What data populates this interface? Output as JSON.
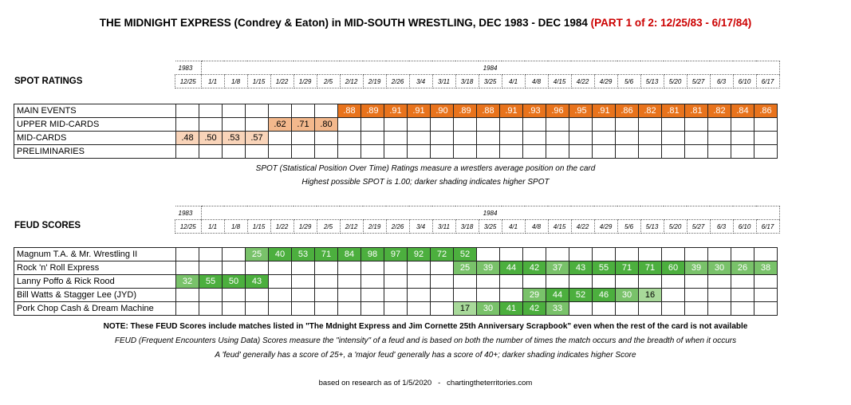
{
  "title": {
    "main": "THE MIDNIGHT EXPRESS (Condrey & Eaton) in MID-SOUTH WRESTLING, DEC 1983 - DEC 1984",
    "part": "(PART 1 of 2: 12/25/83 - 6/17/84)"
  },
  "weeks": [
    "12/25",
    "1/1",
    "1/8",
    "1/15",
    "1/22",
    "1/29",
    "2/5",
    "2/12",
    "2/19",
    "2/26",
    "3/4",
    "3/11",
    "3/18",
    "3/25",
    "4/1",
    "4/8",
    "4/15",
    "4/22",
    "4/29",
    "5/6",
    "5/13",
    "5/20",
    "5/27",
    "6/3",
    "6/10",
    "6/17"
  ],
  "years": [
    "1983",
    "1984"
  ],
  "chart_data": [
    {
      "type": "table",
      "title": "SPOT RATINGS",
      "categories": [
        "12/25",
        "1/1",
        "1/8",
        "1/15",
        "1/22",
        "1/29",
        "2/5",
        "2/12",
        "2/19",
        "2/26",
        "3/4",
        "3/11",
        "3/18",
        "3/25",
        "4/1",
        "4/8",
        "4/15",
        "4/22",
        "4/29",
        "5/6",
        "5/13",
        "5/20",
        "5/27",
        "6/3",
        "6/10",
        "6/17"
      ],
      "series": [
        {
          "name": "MAIN EVENTS",
          "values": [
            null,
            null,
            null,
            null,
            null,
            null,
            null,
            ".88",
            ".89",
            ".91",
            ".91",
            ".90",
            ".89",
            ".88",
            ".91",
            ".93",
            ".96",
            ".95",
            ".91",
            ".86",
            ".82",
            ".81",
            ".81",
            ".82",
            ".84",
            ".86"
          ]
        },
        {
          "name": "UPPER MID-CARDS",
          "values": [
            null,
            null,
            null,
            null,
            ".62",
            ".71",
            ".80",
            null,
            null,
            null,
            null,
            null,
            null,
            null,
            null,
            null,
            null,
            null,
            null,
            null,
            null,
            null,
            null,
            null,
            null,
            null
          ]
        },
        {
          "name": "MID-CARDS",
          "values": [
            ".48",
            ".50",
            ".53",
            ".57",
            null,
            null,
            null,
            null,
            null,
            null,
            null,
            null,
            null,
            null,
            null,
            null,
            null,
            null,
            null,
            null,
            null,
            null,
            null,
            null,
            null,
            null
          ]
        },
        {
          "name": "PRELIMINARIES",
          "values": [
            null,
            null,
            null,
            null,
            null,
            null,
            null,
            null,
            null,
            null,
            null,
            null,
            null,
            null,
            null,
            null,
            null,
            null,
            null,
            null,
            null,
            null,
            null,
            null,
            null,
            null
          ]
        }
      ]
    },
    {
      "type": "table",
      "title": "FEUD SCORES",
      "categories": [
        "12/25",
        "1/1",
        "1/8",
        "1/15",
        "1/22",
        "1/29",
        "2/5",
        "2/12",
        "2/19",
        "2/26",
        "3/4",
        "3/11",
        "3/18",
        "3/25",
        "4/1",
        "4/8",
        "4/15",
        "4/22",
        "4/29",
        "5/6",
        "5/13",
        "5/20",
        "5/27",
        "6/3",
        "6/10",
        "6/17"
      ],
      "series": [
        {
          "name": "Magnum T.A. & Mr. Wrestling II",
          "values": [
            null,
            null,
            null,
            "25",
            "40",
            "53",
            "71",
            "84",
            "98",
            "97",
            "92",
            "72",
            "52",
            null,
            null,
            null,
            null,
            null,
            null,
            null,
            null,
            null,
            null,
            null,
            null,
            null
          ]
        },
        {
          "name": "Rock 'n' Roll Express",
          "values": [
            null,
            null,
            null,
            null,
            null,
            null,
            null,
            null,
            null,
            null,
            null,
            null,
            "25",
            "39",
            "44",
            "42",
            "37",
            "43",
            "55",
            "71",
            "71",
            "60",
            "39",
            "30",
            "26",
            "38"
          ]
        },
        {
          "name": "Lanny Poffo & Rick Rood",
          "values": [
            "32",
            "55",
            "50",
            "43",
            null,
            null,
            null,
            null,
            null,
            null,
            null,
            null,
            null,
            null,
            null,
            null,
            null,
            null,
            null,
            null,
            null,
            null,
            null,
            null,
            null,
            null
          ]
        },
        {
          "name": "Bill Watts & Stagger Lee (JYD)",
          "values": [
            null,
            null,
            null,
            null,
            null,
            null,
            null,
            null,
            null,
            null,
            null,
            null,
            null,
            null,
            null,
            "29",
            "44",
            "52",
            "46",
            "30",
            "16",
            null,
            null,
            null,
            null,
            null
          ]
        },
        {
          "name": "Pork Chop Cash & Dream Machine",
          "values": [
            null,
            null,
            null,
            null,
            null,
            null,
            null,
            null,
            null,
            null,
            null,
            null,
            "17",
            "30",
            "41",
            "42",
            "33",
            null,
            null,
            null,
            null,
            null,
            null,
            null,
            null,
            null
          ]
        }
      ]
    }
  ],
  "notes": {
    "spot1": "SPOT (Statistical Position Over Time) Ratings measure a wrestlers average position on the card",
    "spot2": "Highest possible SPOT is 1.00; darker shading indicates higher SPOT",
    "feud_note": "NOTE: These FEUD Scores include matches listed in \"The Mdnight Express and Jim Cornette 25th Anniversary Scrapbook\" even when the rest of the card is not available",
    "feud1": "FEUD (Frequent Encounters Using Data) Scores measure the \"intensity\" of a feud and is based on both the number of times the match occurs and the breadth of when it occurs",
    "feud2": "A 'feud' generally has a score of 25+, a 'major feud' generally has a score of 40+; darker shading indicates higher Score",
    "source": "based on research as of 1/5/2020   -   chartingtheterritories.com"
  },
  "colors": {
    "main_events": "#e8731c",
    "upper_mid": "#f3b88c",
    "mid_cards": "#f9d4b9",
    "feud_high": "#4caf3e",
    "feud_mid": "#79c26a",
    "feud_low": "#a8d99a"
  }
}
